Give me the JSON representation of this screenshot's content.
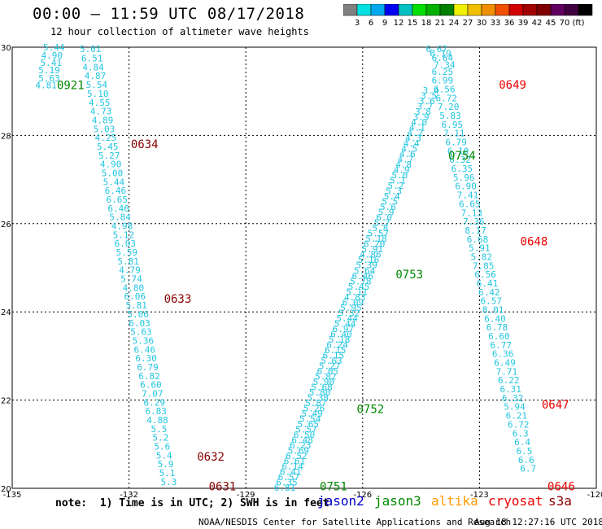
{
  "title": "00:00 – 11:59 UTC 08/17/2018",
  "subtitle": "12 hour collection of altimeter wave heights",
  "colorbar": {
    "colors": [
      "#808080",
      "#00e0e0",
      "#00a8f0",
      "#0000f0",
      "#00c0c0",
      "#00e000",
      "#00b000",
      "#008000",
      "#f0f000",
      "#f0c000",
      "#f09000",
      "#f05000",
      "#d00000",
      "#a00000",
      "#800000",
      "#600060",
      "#400040",
      "#000000"
    ],
    "labels": [
      "3",
      "6",
      "9",
      "12",
      "15",
      "18",
      "21",
      "24",
      "27",
      "30",
      "33",
      "36",
      "39",
      "42",
      "45",
      "70",
      "(ft)"
    ]
  },
  "note": "note:  1) Time is in UTC; 2) SWH is in feet",
  "satellites": [
    {
      "name": "jason2",
      "color": "#0000cc"
    },
    {
      "name": "jason3",
      "color": "#008800"
    },
    {
      "name": "altika",
      "color": "#ff9900"
    },
    {
      "name": "cryosat",
      "color": "#ee0000"
    },
    {
      "name": "s3a",
      "color": "#880000"
    }
  ],
  "credit": "NOAA/NESDIS Center for Satellite Applications and Research",
  "timestamp": "Aug 18 12:27:16 UTC 2018",
  "chart_data": {
    "type": "scatter",
    "title": "00:00 – 11:59 UTC 08/17/2018",
    "xlim": [
      -135,
      -120
    ],
    "ylim": [
      20,
      30
    ],
    "xticks": [
      "-135",
      "-132",
      "-129",
      "-126",
      "-123",
      "-120"
    ],
    "yticks": [
      "20",
      "22",
      "24",
      "26",
      "28",
      "30"
    ],
    "grid": true,
    "value_color": "#22c5e0",
    "series": [
      {
        "x": [
          -133.93,
          -133.98,
          -134.0,
          -134.05,
          -134.05,
          -134.13
        ],
        "y": [
          30.0,
          29.82,
          29.65,
          29.48,
          29.3,
          29.14
        ],
        "values": [
          "5.44",
          "4.90",
          "5.41",
          "5.19",
          "5.63",
          "4.81"
        ]
      },
      {
        "x": [
          -132.99,
          -132.95,
          -132.92,
          -132.87,
          -132.83,
          -132.8,
          -132.76,
          -132.72,
          -132.68,
          -132.64,
          -132.6,
          -132.55,
          -132.51,
          -132.47,
          -132.43,
          -132.39,
          -132.35,
          -132.31,
          -132.27,
          -132.23,
          -132.18,
          -132.14,
          -132.1,
          -132.06,
          -132.02,
          -131.98,
          -131.94,
          -131.89,
          -131.85,
          -131.81,
          -131.77,
          -131.73,
          -131.69,
          -131.64,
          -131.6,
          -131.56,
          -131.52,
          -131.48,
          -131.44,
          -131.4,
          -131.35,
          -131.31,
          -131.27,
          -131.23,
          -131.19,
          -131.15,
          -131.1,
          -131.06,
          -131.02,
          -130.98,
          -130.94,
          -130.9
        ],
        "y": [
          29.96,
          29.75,
          29.55,
          29.35,
          29.15,
          28.95,
          28.75,
          28.55,
          28.35,
          28.15,
          27.95,
          27.75,
          27.55,
          27.35,
          27.15,
          26.95,
          26.75,
          26.55,
          26.35,
          26.15,
          25.95,
          25.75,
          25.55,
          25.35,
          25.15,
          24.95,
          24.75,
          24.55,
          24.35,
          24.15,
          23.95,
          23.75,
          23.55,
          23.35,
          23.15,
          22.95,
          22.75,
          22.55,
          22.35,
          22.15,
          21.95,
          21.75,
          21.55,
          21.35,
          21.15,
          20.95,
          20.75,
          20.55,
          20.35,
          20.15,
          19.95,
          19.75
        ],
        "values": [
          "5.01",
          "6.51",
          "4.84",
          "4.87",
          "5.54",
          "5.10",
          "4.55",
          "4.73",
          "4.89",
          "5.03",
          "4.25",
          "5.45",
          "5.27",
          "4.90",
          "5.00",
          "5.44",
          "6.46",
          "6.65",
          "6.46",
          "5.84",
          "4.98",
          "5.12",
          "6.03",
          "5.59",
          "5.81",
          "4.79",
          "5.74",
          "4.80",
          "6.06",
          "5.81",
          "5.06",
          "6.03",
          "5.63",
          "5.36",
          "6.46",
          "6.30",
          "6.79",
          "6.82",
          "6.60",
          "7.07",
          "6.29",
          "6.83",
          "4.88",
          "5.5",
          "5.2",
          "5.6",
          "5.4",
          "5.9",
          "5.1",
          "5.3",
          "5.7",
          "5.8"
        ]
      },
      {
        "x": [
          -128.0,
          -127.95,
          -127.9,
          -127.85,
          -127.8,
          -127.75,
          -127.7,
          -127.65,
          -127.6,
          -127.55,
          -127.5,
          -127.45,
          -127.4,
          -127.35,
          -127.3,
          -127.25,
          -127.2,
          -127.15,
          -127.1,
          -127.05,
          -127.0,
          -126.95,
          -126.9,
          -126.85,
          -126.8,
          -126.75,
          -126.7,
          -126.65,
          -126.6,
          -126.55,
          -126.5,
          -126.45,
          -126.4,
          -126.35,
          -126.3,
          -126.25,
          -126.2,
          -126.15,
          -126.1,
          -126.05,
          -126.0,
          -125.95,
          -125.9,
          -125.85,
          -125.8,
          -125.75,
          -125.7,
          -125.65,
          -125.6,
          -125.55,
          -125.5,
          -125.45,
          -125.4,
          -125.35,
          -125.3,
          -125.25,
          -125.2,
          -125.15,
          -125.1,
          -125.05,
          -125.0,
          -124.95,
          -124.9,
          -124.85,
          -124.8,
          -124.75,
          -124.7,
          -124.65,
          -124.6,
          -124.55,
          -124.5,
          -124.45,
          -124.4,
          -124.35,
          -124.3,
          -124.25
        ],
        "y": [
          20.02,
          20.14,
          20.26,
          20.38,
          20.5,
          20.62,
          20.74,
          20.86,
          20.98,
          21.1,
          21.22,
          21.34,
          21.46,
          21.58,
          21.7,
          21.82,
          21.94,
          22.06,
          22.18,
          22.3,
          22.42,
          22.54,
          22.66,
          22.78,
          22.9,
          23.02,
          23.14,
          23.26,
          23.38,
          23.5,
          23.62,
          23.74,
          23.86,
          23.98,
          24.1,
          24.22,
          24.34,
          24.46,
          24.58,
          24.7,
          24.82,
          24.94,
          25.06,
          25.18,
          25.3,
          25.42,
          25.54,
          25.66,
          25.78,
          25.9,
          26.02,
          26.14,
          26.26,
          26.38,
          26.5,
          26.62,
          26.74,
          26.86,
          26.98,
          27.1,
          27.22,
          27.34,
          27.46,
          27.58,
          27.7,
          27.82,
          27.94,
          28.06,
          28.18,
          28.3,
          28.42,
          28.54,
          28.66,
          28.78,
          28.9,
          29.02
        ],
        "values": [
          "6.81",
          "6.35",
          "6.57",
          "6.41",
          "6.14",
          "6.61",
          "6.52",
          "5.69",
          "6.23",
          "6.48",
          "6.50",
          "5.57",
          "5.65",
          "5.54",
          "5.49",
          "5.26",
          "5.87",
          "5.38",
          "5.80",
          "5.68",
          "5.90",
          "5.82",
          "6.05",
          "5.27",
          "5.63",
          "6.15",
          "6.15",
          "6.24",
          "5.18",
          "6.40",
          "6.97",
          "5.44",
          "5.44",
          "5.32",
          "5.95",
          "6.09",
          "4.83",
          "5.11",
          "5.45",
          "5.78",
          "6.46",
          "5.64",
          "5.39",
          "5.16",
          "4.86",
          "5.91",
          "6.20",
          "5.18",
          "5.57",
          "5.8",
          "5.7",
          "6.0",
          "5.9",
          "5.6",
          "5.5",
          "5.4",
          "5.3",
          "5.2",
          "5.1",
          "5.0",
          "4.9",
          "4.8",
          "4.7",
          "4.6",
          "4.5",
          "4.4",
          "4.3",
          "4.2",
          "4.1",
          "4.0",
          "3.9",
          "3.8",
          "3.7",
          "3.6",
          "3.5",
          "3.4"
        ]
      },
      {
        "x": [
          -124.1,
          -124.0,
          -123.95,
          -123.9,
          -123.95,
          -123.95,
          -123.9,
          -123.85,
          -123.8,
          -123.75,
          -123.7,
          -123.65,
          -123.6,
          -123.55,
          -123.5,
          -123.45,
          -123.4,
          -123.35,
          -123.3,
          -123.25,
          -123.2,
          -123.15,
          -123.1,
          -123.05,
          -123.0,
          -122.95,
          -122.9,
          -122.85,
          -122.8,
          -122.75,
          -122.7,
          -122.65,
          -122.6,
          -122.55,
          -122.5,
          -122.45,
          -122.4,
          -122.35,
          -122.3,
          -122.25,
          -122.2,
          -122.15,
          -122.1,
          -122.05,
          -122.0,
          -121.95,
          -121.9,
          -121.85,
          -121.8,
          -121.75
        ],
        "y": [
          29.96,
          29.86,
          29.76,
          29.6,
          29.45,
          29.25,
          29.05,
          28.85,
          28.65,
          28.45,
          28.25,
          28.05,
          27.85,
          27.65,
          27.45,
          27.25,
          27.05,
          26.85,
          26.65,
          26.45,
          26.25,
          26.05,
          25.85,
          25.65,
          25.45,
          25.25,
          25.05,
          24.85,
          24.65,
          24.45,
          24.25,
          24.05,
          23.85,
          23.65,
          23.45,
          23.25,
          23.05,
          22.85,
          22.65,
          22.45,
          22.25,
          22.05,
          21.85,
          21.65,
          21.45,
          21.25,
          21.05,
          20.85,
          20.65,
          20.45
        ],
        "values": [
          "6.67",
          "6.19",
          "6.64",
          "7.34",
          "6.25",
          "6.99",
          "6.56",
          "6.72",
          "7.20",
          "5.83",
          "6.95",
          "7.11",
          "6.79",
          "6.10",
          "6.32",
          "6.35",
          "5.96",
          "6.90",
          "7.41",
          "6.65",
          "7.13",
          "7.36",
          "8.17",
          "6.68",
          "5.91",
          "5.82",
          "7.85",
          "6.56",
          "6.41",
          "6.42",
          "6.57",
          "8.01",
          "6.40",
          "6.78",
          "6.60",
          "6.77",
          "6.36",
          "6.49",
          "7.71",
          "6.22",
          "6.31",
          "6.32",
          "5.94",
          "6.21",
          "6.72",
          "6.3",
          "6.4",
          "6.5",
          "6.6",
          "6.7"
        ]
      }
    ],
    "pass_labels": [
      {
        "text": "0921",
        "x": -133.5,
        "y": 29.14,
        "color": "#008800"
      },
      {
        "text": "0634",
        "x": -131.6,
        "y": 27.8,
        "color": "#880000"
      },
      {
        "text": "0633",
        "x": -130.75,
        "y": 24.3,
        "color": "#880000"
      },
      {
        "text": "0632",
        "x": -129.9,
        "y": 20.72,
        "color": "#880000"
      },
      {
        "text": "0631",
        "x": -129.6,
        "y": 20.05,
        "color": "#880000"
      },
      {
        "text": "0751",
        "x": -126.75,
        "y": 20.05,
        "color": "#008800"
      },
      {
        "text": "0752",
        "x": -125.8,
        "y": 21.8,
        "color": "#008800"
      },
      {
        "text": "0753",
        "x": -124.8,
        "y": 24.85,
        "color": "#008800"
      },
      {
        "text": "0754",
        "x": -123.45,
        "y": 27.55,
        "color": "#008800"
      },
      {
        "text": "0649",
        "x": -122.15,
        "y": 29.15,
        "color": "#ee0000"
      },
      {
        "text": "0648",
        "x": -121.6,
        "y": 25.6,
        "color": "#ee0000"
      },
      {
        "text": "0647",
        "x": -121.05,
        "y": 21.9,
        "color": "#ee0000"
      },
      {
        "text": "0646",
        "x": -120.9,
        "y": 20.05,
        "color": "#ee0000"
      }
    ]
  }
}
